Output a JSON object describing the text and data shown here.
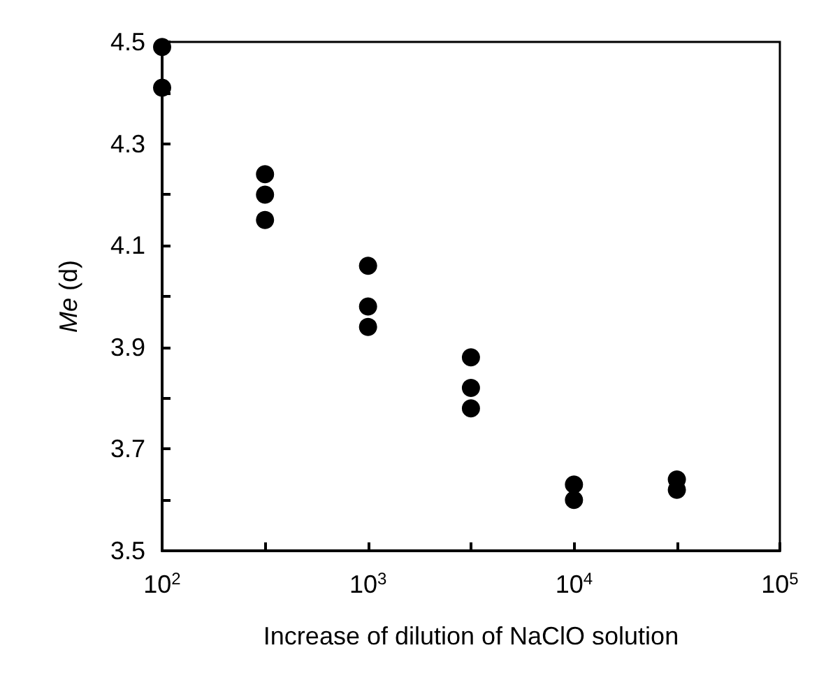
{
  "chart_data": {
    "type": "scatter",
    "xlabel": "Increase of dilution of NaClO solution",
    "ylabel": "Me (d)",
    "log": "x",
    "marker": "circle",
    "grid": false,
    "x": [
      100,
      100,
      316,
      316,
      316,
      1000,
      1000,
      1000,
      3160,
      3160,
      3160,
      10000,
      10000,
      31600,
      31600
    ],
    "series": [
      {
        "color": "#000000",
        "values": [
          4.49,
          4.41,
          4.24,
          4.2,
          4.15,
          4.06,
          3.98,
          3.94,
          3.88,
          3.82,
          3.78,
          3.63,
          3.6,
          3.64,
          3.62
        ]
      }
    ],
    "xlim": [
      100,
      100000
    ],
    "xticks": [
      {
        "value": 100,
        "label": "10$^{2}$"
      },
      {
        "value": 316,
        "label": null
      },
      {
        "value": 1000,
        "label": "10$^{3}$"
      },
      {
        "value": 3160,
        "label": null
      },
      {
        "value": 10000,
        "label": "10$^{4}$"
      },
      {
        "value": 31600,
        "label": null
      },
      {
        "value": 100000,
        "label": "10$^{5}$"
      }
    ],
    "ylim": [
      3.5,
      4.5
    ],
    "yticks": [
      3.5,
      {
        "value": 3.6,
        "label": null
      },
      3.7,
      {
        "value": 3.8,
        "label": null
      },
      3.9,
      {
        "value": 4.0,
        "label": null
      },
      4.1,
      {
        "value": 4.2,
        "label": null
      },
      4.3,
      {
        "value": 4.4,
        "label": null
      },
      4.5
    ]
  }
}
